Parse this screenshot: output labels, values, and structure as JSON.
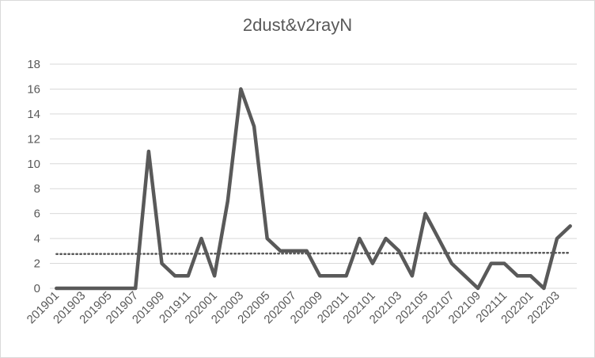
{
  "chart_data": {
    "type": "line",
    "title": "2dust&v2rayN",
    "xlabel": "",
    "ylabel": "",
    "ylim": [
      0,
      18
    ],
    "yticks": [
      0,
      2,
      4,
      6,
      8,
      10,
      12,
      14,
      16,
      18
    ],
    "x": [
      "201901",
      "201902",
      "201903",
      "201904",
      "201905",
      "201906",
      "201907",
      "201908",
      "201909",
      "201910",
      "201911",
      "201912",
      "202001",
      "202002",
      "202003",
      "202004",
      "202005",
      "202006",
      "202007",
      "202008",
      "202009",
      "202010",
      "202011",
      "202012",
      "202101",
      "202102",
      "202103",
      "202104",
      "202105",
      "202106",
      "202107",
      "202108",
      "202109",
      "202110",
      "202111",
      "202112",
      "202201",
      "202202",
      "202203",
      "202204"
    ],
    "xtick_labels": [
      "201901",
      "201903",
      "201905",
      "201907",
      "201909",
      "201911",
      "202001",
      "202003",
      "202005",
      "202007",
      "202009",
      "202011",
      "202101",
      "202103",
      "202105",
      "202107",
      "202109",
      "202111",
      "202201",
      "202203"
    ],
    "series": [
      {
        "values": [
          0,
          0,
          0,
          0,
          0,
          0,
          0,
          11,
          2,
          1,
          1,
          4,
          1,
          7,
          16,
          13,
          4,
          3,
          3,
          3,
          1,
          1,
          1,
          4,
          2,
          4,
          3,
          1,
          6,
          4,
          2,
          1,
          0,
          2,
          2,
          1,
          1,
          0,
          4,
          5
        ],
        "color": "#595959"
      }
    ],
    "trendline": {
      "kind": "linear",
      "start": 2.75,
      "end": 2.85,
      "color": "#595959",
      "style": "dotted"
    },
    "grid": true,
    "legend": "none"
  }
}
